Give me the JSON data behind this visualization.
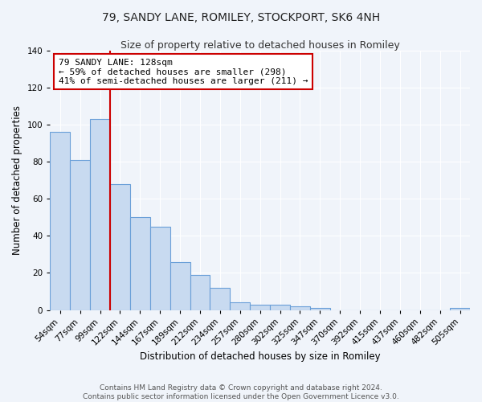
{
  "title": "79, SANDY LANE, ROMILEY, STOCKPORT, SK6 4NH",
  "subtitle": "Size of property relative to detached houses in Romiley",
  "xlabel": "Distribution of detached houses by size in Romiley",
  "ylabel": "Number of detached properties",
  "bin_labels": [
    "54sqm",
    "77sqm",
    "99sqm",
    "122sqm",
    "144sqm",
    "167sqm",
    "189sqm",
    "212sqm",
    "234sqm",
    "257sqm",
    "280sqm",
    "302sqm",
    "325sqm",
    "347sqm",
    "370sqm",
    "392sqm",
    "415sqm",
    "437sqm",
    "460sqm",
    "482sqm",
    "505sqm"
  ],
  "bar_heights": [
    96,
    81,
    103,
    68,
    50,
    45,
    26,
    19,
    12,
    4,
    3,
    3,
    2,
    1,
    0,
    0,
    0,
    0,
    0,
    0,
    1
  ],
  "bar_color": "#c8daf0",
  "bar_edge_color": "#6a9fd8",
  "ylim": [
    0,
    140
  ],
  "yticks": [
    0,
    20,
    40,
    60,
    80,
    100,
    120,
    140
  ],
  "vline_color": "#cc0000",
  "annotation_text": "79 SANDY LANE: 128sqm\n← 59% of detached houses are smaller (298)\n41% of semi-detached houses are larger (211) →",
  "annotation_box_color": "#ffffff",
  "annotation_box_edge_color": "#cc0000",
  "footer_line1": "Contains HM Land Registry data © Crown copyright and database right 2024.",
  "footer_line2": "Contains public sector information licensed under the Open Government Licence v3.0.",
  "background_color": "#f0f4fa",
  "plot_background_color": "#f0f4fa",
  "title_fontsize": 10,
  "subtitle_fontsize": 9,
  "axis_label_fontsize": 8.5,
  "tick_fontsize": 7.5,
  "footer_fontsize": 6.5,
  "annotation_fontsize": 8
}
